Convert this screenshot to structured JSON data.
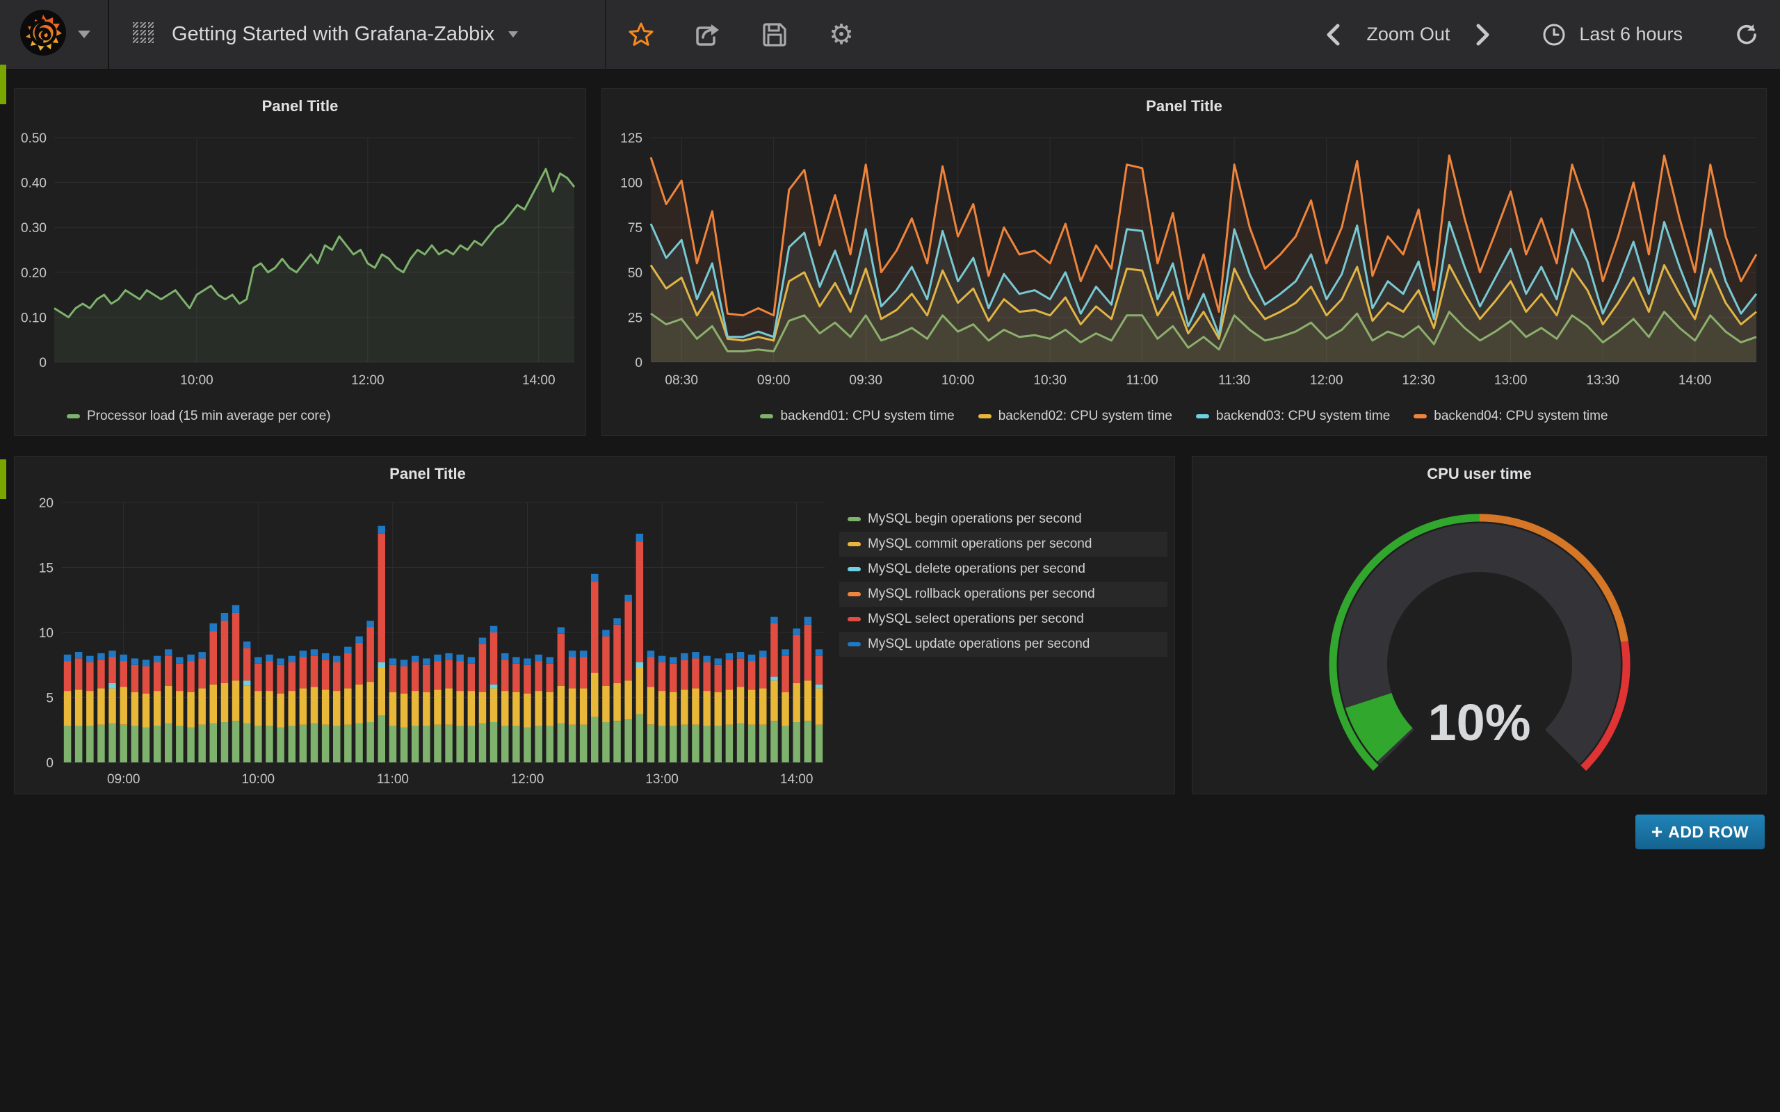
{
  "navbar": {
    "dashboard_title": "Getting Started with Grafana-Zabbix",
    "controls": {
      "zoom_out_label": "Zoom Out",
      "time_range_label": "Last 6 hours"
    },
    "icons": {
      "gear_glyph": "⚙"
    }
  },
  "buttons": {
    "add_row_label": "ADD ROW",
    "add_row_plus": "+"
  },
  "colors": {
    "green": "#7eb26d",
    "yellow": "#eab839",
    "cyan": "#6ed0e0",
    "orange": "#ef843c",
    "red": "#e24d42",
    "blue": "#1f78c1",
    "gauge_green": "rgba(50,172,45,0.97)",
    "gauge_orange": "rgba(237,129,40,0.89)",
    "gauge_red": "rgba(245,54,54,0.9)",
    "star_orange": "#f68a1f"
  },
  "chart_data": [
    {
      "type": "line",
      "title": "Panel Title",
      "x_start": "08:20",
      "x_step_minutes": 5,
      "ylim": [
        0,
        0.5
      ],
      "y_ticks": [
        "0.50",
        "0.40",
        "0.30",
        "0.20",
        "0.10",
        "0"
      ],
      "x_ticks": [
        {
          "i": 20,
          "label": "10:00"
        },
        {
          "i": 44,
          "label": "12:00"
        },
        {
          "i": 68,
          "label": "14:00"
        }
      ],
      "series": [
        {
          "name": "Processor load (15 min average per core)",
          "color": "#7eb26d",
          "fill_opacity": 0.1,
          "values": [
            0.12,
            0.11,
            0.1,
            0.12,
            0.13,
            0.12,
            0.14,
            0.15,
            0.13,
            0.14,
            0.16,
            0.15,
            0.14,
            0.16,
            0.15,
            0.14,
            0.15,
            0.16,
            0.14,
            0.12,
            0.15,
            0.16,
            0.17,
            0.15,
            0.14,
            0.15,
            0.13,
            0.14,
            0.21,
            0.22,
            0.2,
            0.21,
            0.23,
            0.21,
            0.2,
            0.22,
            0.24,
            0.22,
            0.26,
            0.25,
            0.28,
            0.26,
            0.24,
            0.25,
            0.22,
            0.21,
            0.24,
            0.23,
            0.21,
            0.2,
            0.23,
            0.25,
            0.24,
            0.26,
            0.24,
            0.25,
            0.24,
            0.26,
            0.25,
            0.27,
            0.26,
            0.28,
            0.3,
            0.31,
            0.33,
            0.35,
            0.34,
            0.37,
            0.4,
            0.43,
            0.38,
            0.42,
            0.41,
            0.39
          ]
        }
      ]
    },
    {
      "type": "line",
      "title": "Panel Title",
      "x_start": "08:20",
      "x_step_minutes": 5,
      "ylim": [
        0,
        125
      ],
      "y_ticks": [
        "125",
        "100",
        "75",
        "50",
        "25",
        "0"
      ],
      "x_ticks": [
        {
          "i": 2,
          "label": "08:30"
        },
        {
          "i": 8,
          "label": "09:00"
        },
        {
          "i": 14,
          "label": "09:30"
        },
        {
          "i": 20,
          "label": "10:00"
        },
        {
          "i": 26,
          "label": "10:30"
        },
        {
          "i": 32,
          "label": "11:00"
        },
        {
          "i": 38,
          "label": "11:30"
        },
        {
          "i": 44,
          "label": "12:00"
        },
        {
          "i": 50,
          "label": "12:30"
        },
        {
          "i": 56,
          "label": "13:00"
        },
        {
          "i": 62,
          "label": "13:30"
        },
        {
          "i": 68,
          "label": "14:00"
        }
      ],
      "series": [
        {
          "name": "backend01: CPU system time",
          "color": "#7eb26d",
          "fill_opacity": 0.08,
          "values": [
            27,
            21,
            24,
            13,
            20,
            6,
            6,
            7,
            6,
            23,
            26,
            16,
            22,
            14,
            26,
            12,
            15,
            19,
            13,
            26,
            17,
            21,
            12,
            18,
            14,
            15,
            13,
            18,
            11,
            16,
            12,
            26,
            26,
            13,
            20,
            8,
            14,
            7,
            26,
            18,
            12,
            14,
            17,
            22,
            13,
            18,
            27,
            12,
            17,
            14,
            20,
            10,
            28,
            19,
            12,
            17,
            23,
            14,
            19,
            13,
            26,
            20,
            11,
            17,
            24,
            14,
            28,
            19,
            12,
            26,
            17,
            11,
            14
          ]
        },
        {
          "name": "backend02: CPU system time",
          "color": "#eab839",
          "fill_opacity": 0.08,
          "values": [
            54,
            41,
            47,
            26,
            39,
            13,
            12,
            14,
            12,
            45,
            50,
            31,
            44,
            28,
            52,
            24,
            29,
            38,
            26,
            51,
            33,
            41,
            23,
            35,
            28,
            29,
            26,
            36,
            21,
            31,
            24,
            52,
            51,
            26,
            39,
            16,
            28,
            13,
            52,
            35,
            24,
            28,
            33,
            42,
            26,
            35,
            53,
            23,
            33,
            28,
            40,
            19,
            54,
            38,
            24,
            34,
            45,
            28,
            38,
            26,
            52,
            40,
            21,
            33,
            47,
            28,
            54,
            38,
            24,
            52,
            33,
            21,
            28
          ]
        },
        {
          "name": "backend03: CPU system time",
          "color": "#6ed0e0",
          "fill_opacity": 0.08,
          "values": [
            77,
            58,
            68,
            35,
            55,
            14,
            14,
            17,
            14,
            64,
            72,
            42,
            62,
            38,
            74,
            31,
            40,
            53,
            35,
            73,
            45,
            58,
            30,
            49,
            38,
            40,
            35,
            50,
            27,
            42,
            32,
            74,
            73,
            35,
            55,
            20,
            38,
            15,
            74,
            49,
            32,
            38,
            45,
            60,
            35,
            49,
            76,
            30,
            45,
            38,
            56,
            24,
            78,
            53,
            31,
            47,
            63,
            38,
            53,
            35,
            74,
            56,
            27,
            45,
            67,
            38,
            78,
            53,
            31,
            74,
            45,
            27,
            38
          ]
        },
        {
          "name": "backend04: CPU system time",
          "color": "#ef843c",
          "fill_opacity": 0.08,
          "values": [
            114,
            88,
            101,
            55,
            84,
            27,
            26,
            30,
            26,
            96,
            107,
            65,
            93,
            60,
            110,
            50,
            62,
            80,
            55,
            109,
            70,
            88,
            48,
            75,
            60,
            62,
            55,
            77,
            45,
            65,
            52,
            110,
            108,
            55,
            83,
            35,
            60,
            28,
            110,
            75,
            52,
            60,
            70,
            90,
            55,
            75,
            112,
            48,
            70,
            60,
            85,
            40,
            115,
            80,
            50,
            72,
            95,
            60,
            80,
            55,
            110,
            85,
            45,
            70,
            100,
            60,
            115,
            80,
            50,
            110,
            70,
            45,
            60
          ]
        }
      ]
    },
    {
      "type": "bar_stacked",
      "title": "Panel Title",
      "x_start": "08:35",
      "x_step_minutes": 5,
      "ylim": [
        0,
        20
      ],
      "y_ticks": [
        "20",
        "15",
        "10",
        "5",
        "0"
      ],
      "x_ticks": [
        {
          "i": 5,
          "label": "09:00"
        },
        {
          "i": 17,
          "label": "10:00"
        },
        {
          "i": 29,
          "label": "11:00"
        },
        {
          "i": 41,
          "label": "12:00"
        },
        {
          "i": 53,
          "label": "13:00"
        },
        {
          "i": 65,
          "label": "14:00"
        }
      ],
      "series": [
        {
          "name": "MySQL begin operations per second",
          "color": "#7eb26d",
          "values": [
            2.8,
            2.8,
            2.8,
            2.9,
            3.0,
            2.9,
            2.8,
            2.7,
            2.8,
            3.0,
            2.8,
            2.7,
            2.9,
            3.0,
            3.1,
            3.2,
            3.0,
            2.8,
            2.8,
            2.7,
            2.8,
            2.9,
            3.0,
            2.9,
            2.8,
            2.9,
            3.0,
            3.1,
            3.6,
            2.8,
            2.7,
            2.8,
            2.8,
            2.9,
            2.9,
            2.8,
            2.8,
            3.0,
            3.1,
            2.8,
            2.8,
            2.7,
            2.8,
            2.8,
            3.0,
            2.9,
            2.9,
            3.5,
            3.1,
            3.2,
            3.3,
            3.7,
            2.9,
            2.8,
            2.8,
            2.9,
            2.9,
            2.8,
            2.8,
            2.9,
            3.0,
            2.9,
            2.9,
            3.2,
            2.8,
            3.1,
            3.2,
            2.9
          ]
        },
        {
          "name": "MySQL commit operations per second",
          "color": "#eab839",
          "values": [
            2.7,
            2.8,
            2.7,
            2.8,
            2.7,
            2.9,
            2.6,
            2.6,
            2.7,
            2.9,
            2.7,
            2.7,
            2.8,
            3.0,
            3.0,
            3.1,
            2.9,
            2.7,
            2.7,
            2.6,
            2.7,
            2.8,
            2.8,
            2.7,
            2.7,
            2.8,
            3.0,
            3.1,
            3.7,
            2.6,
            2.6,
            2.7,
            2.6,
            2.7,
            2.8,
            2.7,
            2.7,
            2.4,
            2.6,
            2.7,
            2.6,
            2.6,
            2.7,
            2.6,
            2.9,
            2.8,
            2.8,
            3.4,
            2.8,
            2.9,
            3.0,
            3.6,
            2.9,
            2.7,
            2.6,
            2.7,
            2.8,
            2.7,
            2.6,
            2.7,
            2.8,
            2.7,
            2.8,
            3.1,
            2.6,
            3.0,
            3.1,
            2.8
          ]
        },
        {
          "name": "MySQL delete operations per second",
          "color": "#6ed0e0",
          "values": [
            0,
            0,
            0,
            0,
            0.4,
            0,
            0,
            0,
            0,
            0,
            0,
            0,
            0,
            0,
            0,
            0,
            0.4,
            0,
            0,
            0,
            0,
            0,
            0,
            0,
            0,
            0,
            0,
            0,
            0.4,
            0,
            0,
            0,
            0,
            0,
            0,
            0,
            0,
            0,
            0.3,
            0,
            0,
            0,
            0,
            0,
            0,
            0,
            0,
            0,
            0,
            0,
            0,
            0.4,
            0,
            0,
            0,
            0,
            0,
            0,
            0,
            0,
            0,
            0,
            0,
            0.3,
            0,
            0,
            0,
            0.3
          ]
        },
        {
          "name": "MySQL rollback operations per second",
          "color": "#ef843c",
          "values": [
            0,
            0,
            0,
            0,
            0,
            0,
            0,
            0,
            0,
            0,
            0,
            0,
            0,
            0,
            0,
            0,
            0,
            0,
            0,
            0,
            0,
            0,
            0,
            0,
            0,
            0,
            0,
            0,
            0,
            0,
            0,
            0,
            0,
            0,
            0,
            0,
            0,
            0,
            0,
            0,
            0,
            0,
            0,
            0,
            0,
            0,
            0,
            0,
            0,
            0,
            0,
            0,
            0,
            0,
            0,
            0,
            0,
            0,
            0,
            0,
            0,
            0,
            0,
            0,
            0,
            0,
            0,
            0
          ]
        },
        {
          "name": "MySQL select operations per second",
          "color": "#e24d42",
          "values": [
            2.3,
            2.4,
            2.2,
            2.2,
            2.0,
            2.0,
            2.1,
            2.1,
            2.2,
            2.3,
            2.1,
            2.4,
            2.3,
            4.1,
            4.8,
            5.2,
            2.5,
            2.1,
            2.3,
            2.2,
            2.2,
            2.4,
            2.4,
            2.3,
            2.2,
            2.7,
            3.2,
            4.2,
            9.9,
            2.1,
            2.1,
            2.2,
            2.1,
            2.2,
            2.2,
            2.3,
            2.1,
            3.7,
            4.0,
            2.4,
            2.2,
            2.2,
            2.3,
            2.2,
            4.0,
            2.4,
            2.4,
            7.0,
            3.8,
            4.5,
            6.1,
            9.3,
            2.3,
            2.2,
            2.2,
            2.3,
            2.3,
            2.2,
            2.1,
            2.3,
            2.2,
            2.2,
            2.4,
            4.1,
            2.8,
            3.7,
            4.3,
            2.2
          ]
        },
        {
          "name": "MySQL update operations per second",
          "color": "#1f78c1",
          "values": [
            0.5,
            0.5,
            0.5,
            0.5,
            0.5,
            0.5,
            0.5,
            0.5,
            0.5,
            0.5,
            0.5,
            0.5,
            0.5,
            0.6,
            0.6,
            0.6,
            0.5,
            0.5,
            0.5,
            0.5,
            0.5,
            0.5,
            0.5,
            0.5,
            0.5,
            0.5,
            0.5,
            0.5,
            0.6,
            0.5,
            0.5,
            0.5,
            0.5,
            0.5,
            0.5,
            0.5,
            0.5,
            0.5,
            0.5,
            0.5,
            0.5,
            0.5,
            0.5,
            0.5,
            0.5,
            0.5,
            0.5,
            0.6,
            0.5,
            0.5,
            0.5,
            0.6,
            0.5,
            0.5,
            0.5,
            0.5,
            0.5,
            0.5,
            0.5,
            0.5,
            0.5,
            0.5,
            0.5,
            0.5,
            0.5,
            0.5,
            0.6,
            0.5
          ]
        }
      ]
    },
    {
      "type": "gauge",
      "title": "CPU user time",
      "value": 10,
      "unit": "%",
      "value_label": "10%",
      "min": 0,
      "max": 100,
      "thresholds": [
        {
          "to": 50,
          "color": "rgba(50,172,45,0.97)"
        },
        {
          "to": 80,
          "color": "rgba(237,129,40,0.89)"
        },
        {
          "to": 100,
          "color": "rgba(245,54,54,0.9)"
        }
      ]
    }
  ]
}
